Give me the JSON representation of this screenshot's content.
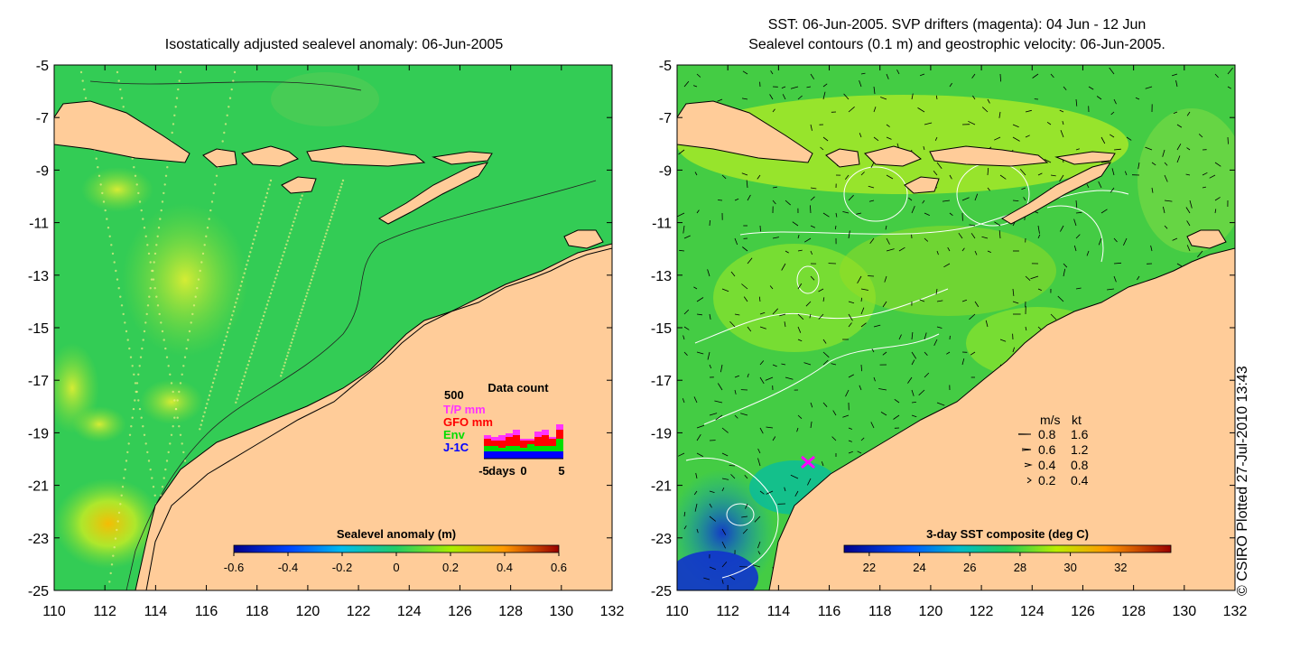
{
  "left_panel": {
    "title": "Isostatically adjusted sealevel anomaly: 06-Jun-2005",
    "colorbar": {
      "label": "Sealevel anomaly (m)",
      "ticks": [
        "-0.6",
        "-0.4",
        "-0.2",
        "0",
        "0.2",
        "0.4",
        "0.6"
      ],
      "range": [
        -0.6,
        0.6
      ]
    },
    "data_count": {
      "title": "Data count",
      "ymax_label": "500",
      "legend": [
        {
          "name": "T/P mm",
          "color": "#ff33ff"
        },
        {
          "name": "GFO mm",
          "color": "#ff0000"
        },
        {
          "name": "Env",
          "color": "#00dd00"
        },
        {
          "name": "J-1C",
          "color": "#0000ff"
        }
      ],
      "xlabel": "days",
      "xticks": [
        "-5",
        "0",
        "5"
      ]
    }
  },
  "right_panel": {
    "title_line1": "SST: 06-Jun-2005. SVP drifters (magenta): 04 Jun - 12 Jun",
    "title_line2": "Sealevel contours (0.1 m) and geostrophic velocity: 06-Jun-2005.",
    "colorbar": {
      "label": "3-day SST composite (deg C)",
      "ticks": [
        "22",
        "24",
        "26",
        "28",
        "30",
        "32"
      ],
      "range": [
        21,
        34
      ]
    },
    "speed_key": {
      "header_ms": "m/s",
      "header_kt": "kt",
      "rows": [
        {
          "ms": "0.8",
          "kt": "1.6"
        },
        {
          "ms": "0.6",
          "kt": "1.2"
        },
        {
          "ms": "0.4",
          "kt": "0.8"
        },
        {
          "ms": "0.2",
          "kt": "0.4"
        }
      ]
    }
  },
  "axes": {
    "lat_ticks": [
      "-5",
      "-7",
      "-9",
      "-11",
      "-13",
      "-15",
      "-17",
      "-19",
      "-21",
      "-23",
      "-25"
    ],
    "lon_ticks": [
      "110",
      "112",
      "114",
      "116",
      "118",
      "120",
      "122",
      "124",
      "126",
      "128",
      "130",
      "132"
    ]
  },
  "credit": "© CSIRO Plotted 27-Jul-2010 13:43",
  "colors": {
    "land": "#ffcc99",
    "sla_ocean": "#33cc55",
    "sst_ocean": "#44cc44"
  }
}
